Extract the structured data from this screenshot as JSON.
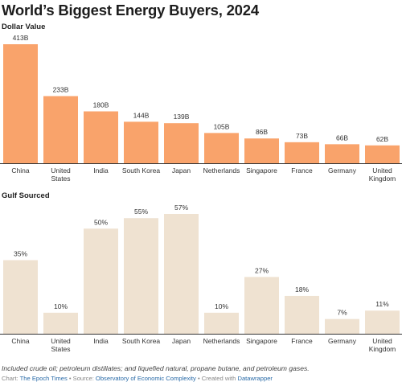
{
  "title": "World’s Biggest Energy Buyers, 2024",
  "footnote": "Included crude oil; petroleum distillates; and liquefied natural, propane butane, and petroleum gases.",
  "credit": {
    "chart_prefix": "Chart: ",
    "chart_source": "The Epoch Times",
    "source_prefix": " • Source: ",
    "source": "Observatory of Economic Complexity",
    "created_prefix": " • Created with ",
    "created_with": "Datawrapper"
  },
  "chart_data": [
    {
      "type": "bar",
      "title": "Dollar Value",
      "categories": [
        "China",
        "United States",
        "India",
        "South Korea",
        "Japan",
        "Netherlands",
        "Singapore",
        "France",
        "Germany",
        "United Kingdom"
      ],
      "category_lines": [
        [
          "China"
        ],
        [
          "United",
          "States"
        ],
        [
          "India"
        ],
        [
          "South Korea"
        ],
        [
          "Japan"
        ],
        [
          "Netherlands"
        ],
        [
          "Singapore"
        ],
        [
          "France"
        ],
        [
          "Germany"
        ],
        [
          "United",
          "Kingdom"
        ]
      ],
      "values": [
        413,
        233,
        180,
        144,
        139,
        105,
        86,
        73,
        66,
        62
      ],
      "labels": [
        "413B",
        "233B",
        "180B",
        "144B",
        "139B",
        "105B",
        "86B",
        "73B",
        "66B",
        "62B"
      ],
      "unit": "B",
      "ylim": [
        0,
        413
      ],
      "color": "#f9a36b"
    },
    {
      "type": "bar",
      "title": "Gulf Sourced",
      "categories": [
        "China",
        "United States",
        "India",
        "South Korea",
        "Japan",
        "Netherlands",
        "Singapore",
        "France",
        "Germany",
        "United Kingdom"
      ],
      "category_lines": [
        [
          "China"
        ],
        [
          "United",
          "States"
        ],
        [
          "India"
        ],
        [
          "South Korea"
        ],
        [
          "Japan"
        ],
        [
          "Netherlands"
        ],
        [
          "Singapore"
        ],
        [
          "France"
        ],
        [
          "Germany"
        ],
        [
          "United",
          "Kingdom"
        ]
      ],
      "values": [
        35,
        10,
        50,
        55,
        57,
        10,
        27,
        18,
        7,
        11
      ],
      "labels": [
        "35%",
        "10%",
        "50%",
        "55%",
        "57%",
        "10%",
        "27%",
        "18%",
        "7%",
        "11%"
      ],
      "unit": "%",
      "ylim": [
        0,
        57
      ],
      "color": "#efe2d1"
    }
  ]
}
